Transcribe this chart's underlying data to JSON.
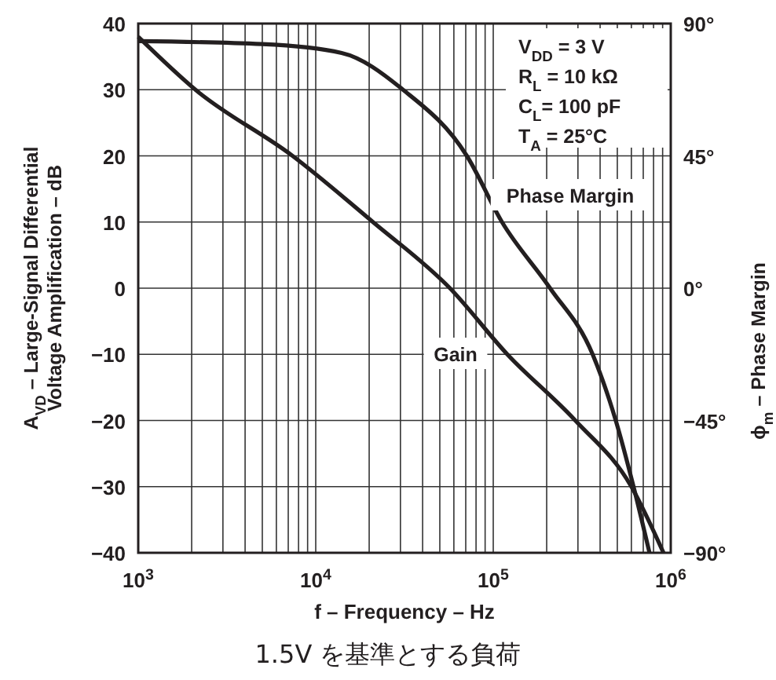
{
  "chart_data": {
    "type": "line",
    "xlabel": "f – Frequency – Hz",
    "ylabel": "A$_{VD}$ – Large-Signal Differential\nVoltage Amplification – dB",
    "y2label": "ϕ$_{m}$ – Phase Margin",
    "log": "x",
    "grid": true,
    "line_style": "solid",
    "xlim": [
      1000,
      1000000
    ],
    "xticks": [
      {
        "value": 1000,
        "label": "10$^{3}$"
      },
      {
        "value": 2000,
        "label": null
      },
      {
        "value": 3000,
        "label": null
      },
      {
        "value": 4000,
        "label": null
      },
      {
        "value": 5000,
        "label": null
      },
      {
        "value": 6000,
        "label": null
      },
      {
        "value": 7000,
        "label": null
      },
      {
        "value": 8000,
        "label": null
      },
      {
        "value": 9000,
        "label": null
      },
      {
        "value": 10000,
        "label": "10$^{4}$"
      },
      {
        "value": 20000,
        "label": null
      },
      {
        "value": 30000,
        "label": null
      },
      {
        "value": 40000,
        "label": null
      },
      {
        "value": 50000,
        "label": null
      },
      {
        "value": 60000,
        "label": null
      },
      {
        "value": 70000,
        "label": null
      },
      {
        "value": 80000,
        "label": null
      },
      {
        "value": 90000,
        "label": null
      },
      {
        "value": 100000,
        "label": "10$^{5}$"
      },
      {
        "value": 200000,
        "label": null
      },
      {
        "value": 300000,
        "label": null
      },
      {
        "value": 400000,
        "label": null
      },
      {
        "value": 500000,
        "label": null
      },
      {
        "value": 600000,
        "label": null
      },
      {
        "value": 700000,
        "label": null
      },
      {
        "value": 800000,
        "label": null
      },
      {
        "value": 900000,
        "label": null
      },
      {
        "value": 1000000,
        "label": "10$^{6}$"
      }
    ],
    "ylim": [
      -40,
      40
    ],
    "yticks": [
      {
        "value": -40,
        "label": "−40"
      },
      {
        "value": -30,
        "label": "−30"
      },
      {
        "value": -20,
        "label": "−20"
      },
      {
        "value": -10,
        "label": "−10"
      },
      0,
      10,
      20,
      30,
      40
    ],
    "y2lim": [
      -90,
      90
    ],
    "y2ticks": [
      {
        "value": -90,
        "label": "−90°"
      },
      {
        "value": -45,
        "label": "−45°"
      },
      {
        "value": 0,
        "label": "0°"
      },
      {
        "value": 45,
        "label": "45°"
      },
      {
        "value": 90,
        "label": "90°"
      }
    ],
    "series": [
      {
        "name": "Gain",
        "color": "#231f20",
        "x": [
          1000,
          2100,
          7400,
          21000,
          57000,
          120000,
          290000,
          600000,
          910000
        ],
        "values": [
          38,
          30,
          20,
          10,
          0,
          -10,
          -20,
          -30,
          -40
        ]
      },
      {
        "name": "Phase Margin",
        "color": "#231f20",
        "axis": "y2",
        "x": [
          1000,
          5000,
          14000,
          31000,
          71000,
          112000,
          209000,
          363000,
          490000,
          617000,
          759000
        ],
        "values": [
          84,
          83,
          80,
          67.5,
          45,
          22.5,
          0,
          -22.5,
          -45,
          -67.5,
          -90
        ]
      }
    ],
    "annotations": [
      "V$_{DD}$ = 3 V",
      "R$_{L}$ = 10 kΩ",
      "C$_{L}$= 100 pF",
      "T$_{A}$ = 25°C",
      "1.5V を基準とする負荷"
    ]
  }
}
